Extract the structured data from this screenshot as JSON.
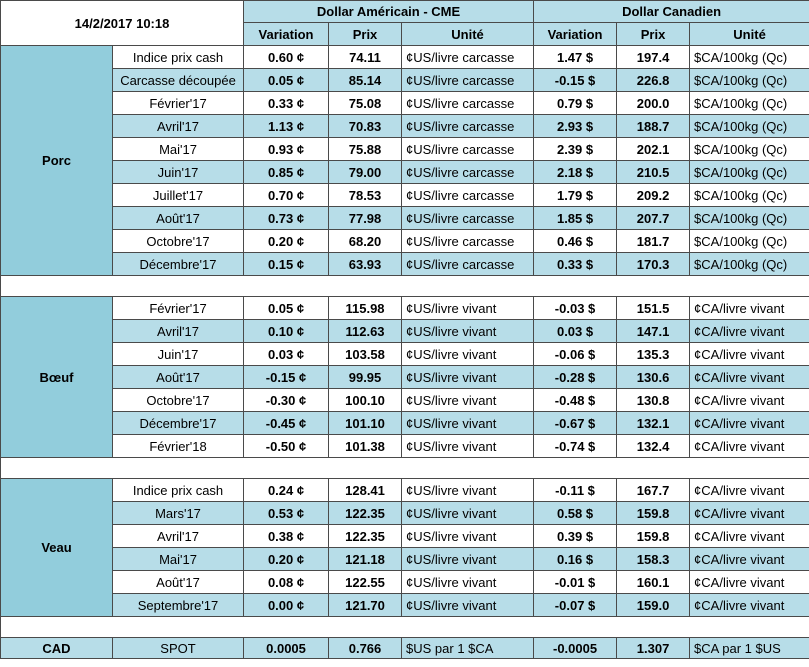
{
  "header": {
    "date": "14/2/2017 10:18",
    "usd_title": "Dollar Américain - CME",
    "cad_title": "Dollar Canadien",
    "col_variation": "Variation",
    "col_price": "Prix",
    "col_unit": "Unité"
  },
  "colors": {
    "positive": "#00b050",
    "negative": "#ff0000",
    "section_bg": "#92cddc",
    "band_bg": "#b7dde8"
  },
  "sections": [
    {
      "name": "Porc",
      "rows": [
        {
          "label": "Indice prix cash",
          "usd_var": "0.60 ¢",
          "usd_price": "74.11",
          "usd_unit": "¢US/livre carcasse",
          "cad_var": "1.47 $",
          "cad_price": "197.4",
          "cad_unit": "$CA/100kg (Qc)",
          "usd_sign": "pos",
          "cad_sign": "pos"
        },
        {
          "label": "Carcasse découpée",
          "usd_var": "0.05 ¢",
          "usd_price": "85.14",
          "usd_unit": "¢US/livre carcasse",
          "cad_var": "-0.15 $",
          "cad_price": "226.8",
          "cad_unit": "$CA/100kg (Qc)",
          "usd_sign": "pos",
          "cad_sign": "neg"
        },
        {
          "label": "Février'17",
          "usd_var": "0.33 ¢",
          "usd_price": "75.08",
          "usd_unit": "¢US/livre carcasse",
          "cad_var": "0.79 $",
          "cad_price": "200.0",
          "cad_unit": "$CA/100kg (Qc)",
          "usd_sign": "pos",
          "cad_sign": "pos"
        },
        {
          "label": "Avril'17",
          "usd_var": "1.13 ¢",
          "usd_price": "70.83",
          "usd_unit": "¢US/livre carcasse",
          "cad_var": "2.93 $",
          "cad_price": "188.7",
          "cad_unit": "$CA/100kg (Qc)",
          "usd_sign": "pos",
          "cad_sign": "pos"
        },
        {
          "label": "Mai'17",
          "usd_var": "0.93 ¢",
          "usd_price": "75.88",
          "usd_unit": "¢US/livre carcasse",
          "cad_var": "2.39 $",
          "cad_price": "202.1",
          "cad_unit": "$CA/100kg (Qc)",
          "usd_sign": "pos",
          "cad_sign": "pos"
        },
        {
          "label": "Juin'17",
          "usd_var": "0.85 ¢",
          "usd_price": "79.00",
          "usd_unit": "¢US/livre carcasse",
          "cad_var": "2.18 $",
          "cad_price": "210.5",
          "cad_unit": "$CA/100kg (Qc)",
          "usd_sign": "pos",
          "cad_sign": "pos"
        },
        {
          "label": "Juillet'17",
          "usd_var": "0.70 ¢",
          "usd_price": "78.53",
          "usd_unit": "¢US/livre carcasse",
          "cad_var": "1.79 $",
          "cad_price": "209.2",
          "cad_unit": "$CA/100kg (Qc)",
          "usd_sign": "pos",
          "cad_sign": "pos"
        },
        {
          "label": "Août'17",
          "usd_var": "0.73 ¢",
          "usd_price": "77.98",
          "usd_unit": "¢US/livre carcasse",
          "cad_var": "1.85 $",
          "cad_price": "207.7",
          "cad_unit": "$CA/100kg (Qc)",
          "usd_sign": "pos",
          "cad_sign": "pos"
        },
        {
          "label": "Octobre'17",
          "usd_var": "0.20 ¢",
          "usd_price": "68.20",
          "usd_unit": "¢US/livre carcasse",
          "cad_var": "0.46 $",
          "cad_price": "181.7",
          "cad_unit": "$CA/100kg (Qc)",
          "usd_sign": "pos",
          "cad_sign": "pos"
        },
        {
          "label": "Décembre'17",
          "usd_var": "0.15 ¢",
          "usd_price": "63.93",
          "usd_unit": "¢US/livre carcasse",
          "cad_var": "0.33 $",
          "cad_price": "170.3",
          "cad_unit": "$CA/100kg (Qc)",
          "usd_sign": "pos",
          "cad_sign": "pos"
        }
      ]
    },
    {
      "name": "Bœuf",
      "rows": [
        {
          "label": "Février'17",
          "usd_var": "0.05 ¢",
          "usd_price": "115.98",
          "usd_unit": "¢US/livre vivant",
          "cad_var": "-0.03 $",
          "cad_price": "151.5",
          "cad_unit": "¢CA/livre vivant",
          "usd_sign": "pos",
          "cad_sign": "neg"
        },
        {
          "label": "Avril'17",
          "usd_var": "0.10 ¢",
          "usd_price": "112.63",
          "usd_unit": "¢US/livre vivant",
          "cad_var": "0.03 $",
          "cad_price": "147.1",
          "cad_unit": "¢CA/livre vivant",
          "usd_sign": "pos",
          "cad_sign": "pos"
        },
        {
          "label": "Juin'17",
          "usd_var": "0.03 ¢",
          "usd_price": "103.58",
          "usd_unit": "¢US/livre vivant",
          "cad_var": "-0.06 $",
          "cad_price": "135.3",
          "cad_unit": "¢CA/livre vivant",
          "usd_sign": "pos",
          "cad_sign": "neg"
        },
        {
          "label": "Août'17",
          "usd_var": "-0.15 ¢",
          "usd_price": "99.95",
          "usd_unit": "¢US/livre vivant",
          "cad_var": "-0.28 $",
          "cad_price": "130.6",
          "cad_unit": "¢CA/livre vivant",
          "usd_sign": "neg",
          "cad_sign": "neg"
        },
        {
          "label": "Octobre'17",
          "usd_var": "-0.30 ¢",
          "usd_price": "100.10",
          "usd_unit": "¢US/livre vivant",
          "cad_var": "-0.48 $",
          "cad_price": "130.8",
          "cad_unit": "¢CA/livre vivant",
          "usd_sign": "neg",
          "cad_sign": "neg"
        },
        {
          "label": "Décembre'17",
          "usd_var": "-0.45 ¢",
          "usd_price": "101.10",
          "usd_unit": "¢US/livre vivant",
          "cad_var": "-0.67 $",
          "cad_price": "132.1",
          "cad_unit": "¢CA/livre vivant",
          "usd_sign": "neg",
          "cad_sign": "neg"
        },
        {
          "label": "Février'18",
          "usd_var": "-0.50 ¢",
          "usd_price": "101.38",
          "usd_unit": "¢US/livre vivant",
          "cad_var": "-0.74 $",
          "cad_price": "132.4",
          "cad_unit": "¢CA/livre vivant",
          "usd_sign": "neg",
          "cad_sign": "neg"
        }
      ]
    },
    {
      "name": "Veau",
      "rows": [
        {
          "label": "Indice prix cash",
          "usd_var": "0.24 ¢",
          "usd_price": "128.41",
          "usd_unit": "¢US/livre vivant",
          "cad_var": "-0.11 $",
          "cad_price": "167.7",
          "cad_unit": "¢CA/livre vivant",
          "usd_sign": "pos",
          "cad_sign": "neg"
        },
        {
          "label": "Mars'17",
          "usd_var": "0.53 ¢",
          "usd_price": "122.35",
          "usd_unit": "¢US/livre vivant",
          "cad_var": "0.58 $",
          "cad_price": "159.8",
          "cad_unit": "¢CA/livre vivant",
          "usd_sign": "pos",
          "cad_sign": "pos"
        },
        {
          "label": "Avril'17",
          "usd_var": "0.38 ¢",
          "usd_price": "122.35",
          "usd_unit": "¢US/livre vivant",
          "cad_var": "0.39 $",
          "cad_price": "159.8",
          "cad_unit": "¢CA/livre vivant",
          "usd_sign": "pos",
          "cad_sign": "pos"
        },
        {
          "label": "Mai'17",
          "usd_var": "0.20 ¢",
          "usd_price": "121.18",
          "usd_unit": "¢US/livre vivant",
          "cad_var": "0.16 $",
          "cad_price": "158.3",
          "cad_unit": "¢CA/livre vivant",
          "usd_sign": "pos",
          "cad_sign": "pos"
        },
        {
          "label": "Août'17",
          "usd_var": "0.08 ¢",
          "usd_price": "122.55",
          "usd_unit": "¢US/livre vivant",
          "cad_var": "-0.01 $",
          "cad_price": "160.1",
          "cad_unit": "¢CA/livre vivant",
          "usd_sign": "pos",
          "cad_sign": "neg"
        },
        {
          "label": "Septembre'17",
          "usd_var": "0.00 ¢",
          "usd_price": "121.70",
          "usd_unit": "¢US/livre vivant",
          "cad_var": "-0.07 $",
          "cad_price": "159.0",
          "cad_unit": "¢CA/livre vivant",
          "usd_sign": "zero",
          "cad_sign": "neg"
        }
      ]
    }
  ],
  "cad": {
    "name": "CAD",
    "label": "SPOT",
    "usd_var": "0.0005",
    "usd_price": "0.766",
    "usd_unit": "$US par 1 $CA",
    "cad_var": "-0.0005",
    "cad_price": "1.307",
    "cad_unit": "$CA par 1 $US",
    "usd_sign": "pos",
    "cad_sign": "neg"
  }
}
